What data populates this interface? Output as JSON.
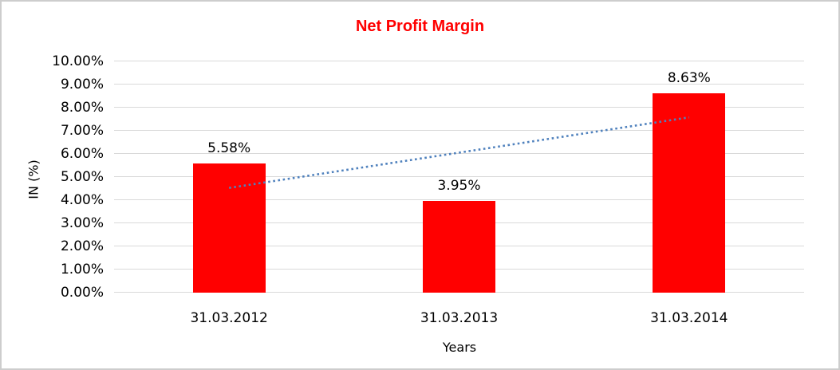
{
  "frame": {
    "background_color": "#ffffff",
    "border_color": "#cdcdcd"
  },
  "chart_data": {
    "type": "bar",
    "title": "Net Profit Margin",
    "title_color": "#ff0000",
    "xlabel": "Years",
    "ylabel": "IN (%)",
    "categories": [
      "31.03.2012",
      "31.03.2013",
      "31.03.2014"
    ],
    "values": [
      5.58,
      3.95,
      8.63
    ],
    "value_labels": [
      "5.58%",
      "3.95%",
      "8.63%"
    ],
    "bar_color": "#ff0000",
    "ylim": [
      0,
      10
    ],
    "y_ticks": [
      "0.00%",
      "1.00%",
      "2.00%",
      "3.00%",
      "4.00%",
      "5.00%",
      "6.00%",
      "7.00%",
      "8.00%",
      "9.00%",
      "10.00%"
    ],
    "grid": true,
    "gridline_color": "#d9d9d9",
    "legend": "none",
    "trendline": {
      "type": "linear",
      "style": "dotted",
      "color": "#4f81bd",
      "start_value": 4.53,
      "end_value": 7.58
    }
  }
}
